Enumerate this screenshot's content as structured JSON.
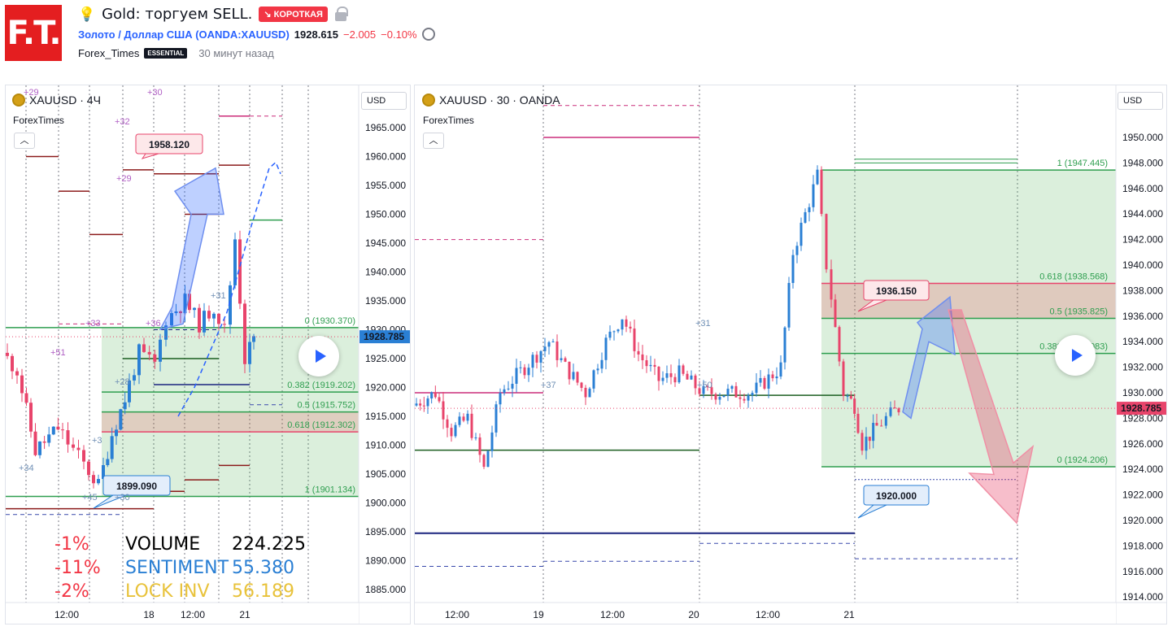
{
  "header": {
    "logo_text": "F.T.",
    "title": "Gold: торгуем SELL.",
    "badge": "↘ КОРОТКАЯ",
    "symbol_link": "Золото / Доллар США (OANDA:XAUUSD)",
    "price": "1928.615",
    "change": "−2.005",
    "change_pct": "−0.10%",
    "author": "Forex_Times",
    "author_badge": "ESSENTIAL",
    "posted": "30 минут назад"
  },
  "left_chart": {
    "symbol": "XAUUSD · 4Ч",
    "indicator": "ForexTimes",
    "currency": "USD",
    "price_ticks": [
      "1965.000",
      "1960.000",
      "1955.000",
      "1950.000",
      "1945.000",
      "1940.000",
      "1935.000",
      "1930.000",
      "1925.000",
      "1920.000",
      "1915.000",
      "1910.000",
      "1905.000",
      "1900.000",
      "1895.000",
      "1890.000",
      "1885.000"
    ],
    "current_price": "1928.785",
    "time_ticks": [
      "12:00",
      "18",
      "12:00",
      "21"
    ],
    "fib": [
      "0 (1930.370)",
      "0.382 (1919.202)",
      "0.5 (1915.752)",
      "0.618 (1912.302)",
      "1 (1901.134)"
    ],
    "callout_high": "1958.120",
    "callout_low": "1899.090",
    "marks": [
      "+29",
      "+30",
      "+32",
      "+29",
      "+33",
      "+51",
      "+36",
      "+31",
      "+28",
      "+34",
      "+45",
      "+30",
      "+3"
    ],
    "stats": {
      "pct": [
        "-1%",
        "-11%",
        "-2%"
      ],
      "labels": [
        "VOLUME",
        "SENTIMENT",
        "LOCK INV"
      ],
      "values": [
        "224.225",
        "55.380",
        "56.189"
      ],
      "colors": [
        "#f23645",
        "#f23645",
        "#f23645"
      ],
      "label_colors": [
        "#000000",
        "#2a7fd4",
        "#e8c23a"
      ]
    }
  },
  "right_chart": {
    "symbol": "XAUUSD · 30 · OANDA",
    "indicator": "ForexTimes",
    "currency": "USD",
    "price_ticks": [
      "1950.000",
      "1948.000",
      "1946.000",
      "1944.000",
      "1942.000",
      "1940.000",
      "1938.000",
      "1936.000",
      "1934.000",
      "1932.000",
      "1930.000",
      "1928.000",
      "1926.000",
      "1924.000",
      "1922.000",
      "1920.000",
      "1918.000",
      "1916.000",
      "1914.000"
    ],
    "current_price": "1928.785",
    "time_ticks": [
      "12:00",
      "19",
      "12:00",
      "20",
      "12:00",
      "21"
    ],
    "fib": [
      "1 (1947.445)",
      "0.618 (1938.568)",
      "0.5 (1935.825)",
      "0.382 (1933.083)",
      "0 (1924.206)"
    ],
    "callout_resist": "1936.150",
    "callout_target": "1920.000",
    "marks": [
      "+37",
      "+31",
      "+50"
    ]
  }
}
